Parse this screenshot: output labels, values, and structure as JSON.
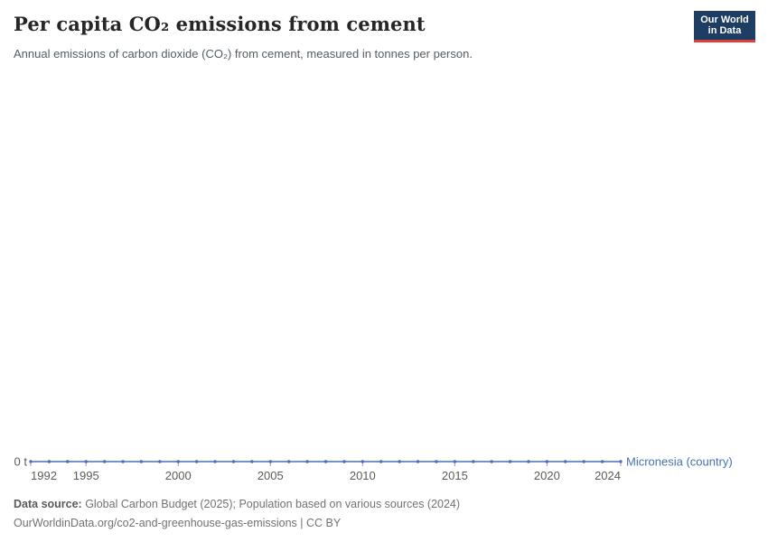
{
  "header": {
    "title": "Per capita CO₂ emissions from cement",
    "subtitle": "Annual emissions of carbon dioxide (CO₂) from cement, measured in tonnes per person.",
    "logo": {
      "line1": "Our World",
      "line2": "in Data"
    }
  },
  "colors": {
    "line": "#4672b4",
    "tick": "#89a1c8",
    "axis_text": "#5b5b5b",
    "title": "#262626",
    "subtitle": "#555d63",
    "footer": "#727272",
    "logo_bg": "#1d3d63",
    "logo_red": "#e0403a"
  },
  "chart_data": {
    "type": "line",
    "title": "Per capita CO₂ emissions from cement",
    "xlabel": "",
    "ylabel": "",
    "grid": false,
    "legend_position": "end-of-line",
    "xlim": [
      1992,
      2024
    ],
    "x_ticks": [
      1992,
      1995,
      2000,
      2005,
      2010,
      2015,
      2020,
      2024
    ],
    "y_axis_label": "0 t",
    "y_unit": "tonnes per person",
    "series": [
      {
        "name": "Micronesia (country)",
        "x": [
          1992,
          1993,
          1994,
          1995,
          1996,
          1997,
          1998,
          1999,
          2000,
          2001,
          2002,
          2003,
          2004,
          2005,
          2006,
          2007,
          2008,
          2009,
          2010,
          2011,
          2012,
          2013,
          2014,
          2015,
          2016,
          2017,
          2018,
          2019,
          2020,
          2021,
          2022,
          2023,
          2024
        ],
        "values": [
          0,
          0,
          0,
          0,
          0,
          0,
          0,
          0,
          0,
          0,
          0,
          0,
          0,
          0,
          0,
          0,
          0,
          0,
          0,
          0,
          0,
          0,
          0,
          0,
          0,
          0,
          0,
          0,
          0,
          0,
          0,
          0,
          0
        ]
      }
    ]
  },
  "footer": {
    "source_label": "Data source:",
    "source_text": " Global Carbon Budget (2025); Population based on various sources (2024)",
    "attribution": "OurWorldinData.org/co2-and-greenhouse-gas-emissions | CC BY"
  }
}
